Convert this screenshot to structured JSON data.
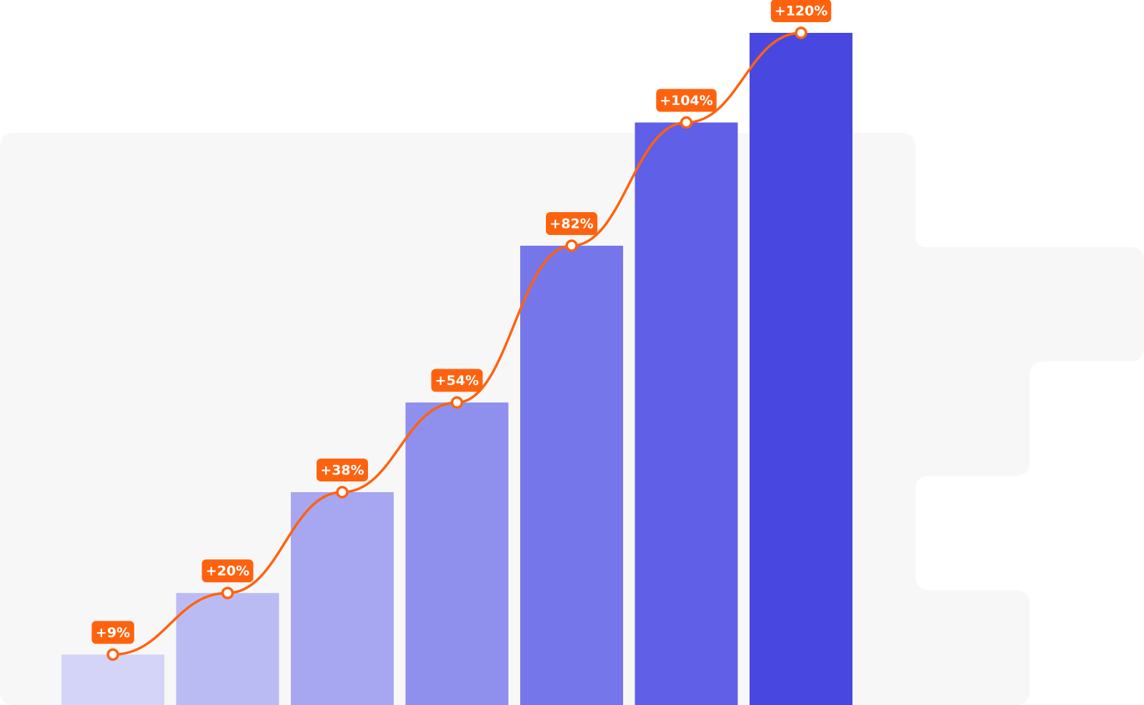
{
  "colors": {
    "panel": "#f7f7f7",
    "line": "#ff620e",
    "label_bg": "#ff620e",
    "label_text": "#ffffff",
    "marker_fill": "#ffffff",
    "bar_gradient": [
      "#d4d4f8",
      "#bbbbf4",
      "#a6a6f1",
      "#8f8fee",
      "#7676eb",
      "#5f5fe7",
      "#4848e1"
    ]
  },
  "chart_data": {
    "type": "bar",
    "title": "",
    "xlabel": "",
    "ylabel": "",
    "ylim": [
      0,
      120
    ],
    "grid": false,
    "legend": "none",
    "categories": [
      "",
      "",
      "",
      "",
      "",
      "",
      ""
    ],
    "values": [
      9,
      20,
      38,
      54,
      82,
      104,
      120
    ],
    "data_labels": [
      "+9%",
      "+20%",
      "+38%",
      "+54%",
      "+82%",
      "+104%",
      "+120%"
    ],
    "overlay": {
      "type": "line",
      "smooth": true,
      "markers": "hollow-circle",
      "values": [
        9,
        20,
        38,
        54,
        82,
        104,
        120
      ]
    }
  }
}
